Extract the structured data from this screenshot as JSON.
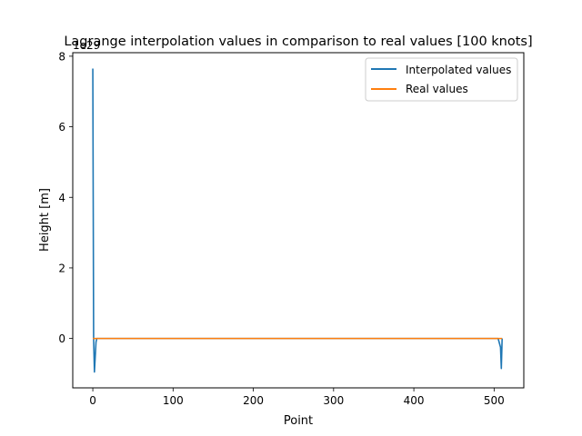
{
  "chart_data": {
    "type": "line",
    "title": "Lagrange interpolation values in comparison to real values [100 knots]",
    "xlabel": "Point",
    "ylabel": "Height [m]",
    "y_offset_label": "1e29",
    "xlim": [
      -25,
      537
    ],
    "ylim": [
      -1.4,
      8.1
    ],
    "y_scale_note": "values in units of 1e29",
    "x_ticks": [
      0,
      100,
      200,
      300,
      400,
      500
    ],
    "y_ticks": [
      -1.4,
      0,
      2,
      4,
      6,
      8
    ],
    "y_tick_labels": [
      "",
      "0",
      "2",
      "4",
      "6",
      "8"
    ],
    "x_tick_labels": [
      "0",
      "100",
      "200",
      "300",
      "400",
      "500"
    ],
    "grid": false,
    "legend_position": "top-right",
    "series": [
      {
        "name": "Interpolated values",
        "color": "#1f77b4",
        "points": [
          [
            0,
            7.65
          ],
          [
            1,
            0
          ],
          [
            2,
            -0.95
          ],
          [
            4,
            -0.1
          ],
          [
            5,
            0
          ],
          [
            100,
            0
          ],
          [
            200,
            0
          ],
          [
            300,
            0
          ],
          [
            400,
            0
          ],
          [
            505,
            0
          ],
          [
            508,
            -0.25
          ],
          [
            509,
            -0.85
          ],
          [
            510,
            0
          ]
        ]
      },
      {
        "name": "Real values",
        "color": "#ff7f0e",
        "points": [
          [
            0,
            0
          ],
          [
            100,
            0
          ],
          [
            200,
            0
          ],
          [
            300,
            0
          ],
          [
            400,
            0
          ],
          [
            500,
            0
          ],
          [
            510,
            0
          ]
        ]
      }
    ]
  }
}
